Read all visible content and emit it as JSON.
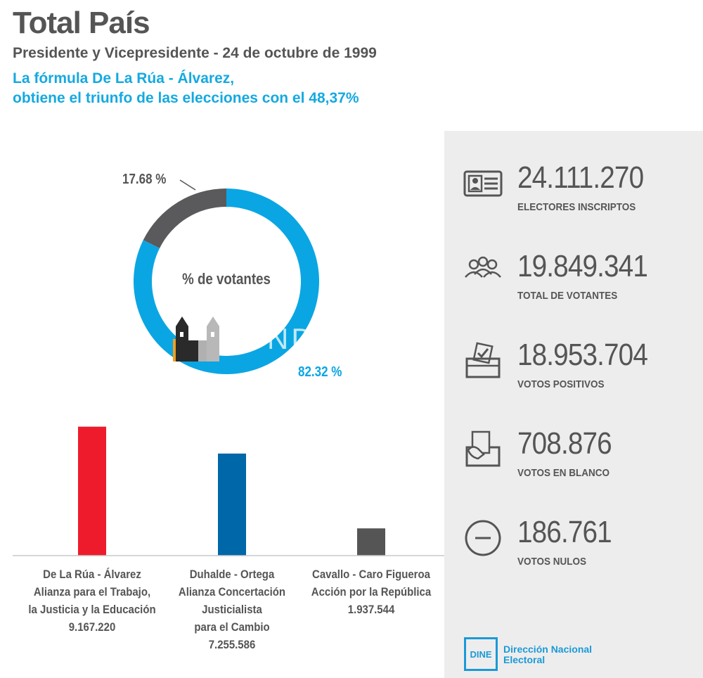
{
  "header": {
    "title": "Total País",
    "subtitle": "Presidente y Vicepresidente - 24 de octubre de 1999",
    "headline_line1": "La fórmula De La Rúa - Álvarez,",
    "headline_line2": "obtiene el triunfo de las elecciones con el 48,37%"
  },
  "colors": {
    "accent": "#15a9e0",
    "donut_voters": "#0aa6e3",
    "donut_non_voters": "#5a5a5c",
    "bar_de_la_rua": "#ee1b2d",
    "bar_duhalde": "#0067a8",
    "bar_cavallo": "#555555",
    "panel_bg": "#eeeded"
  },
  "chart_data": [
    {
      "type": "pie",
      "center_label": "% de votantes",
      "slices": [
        {
          "label": "82.32 %",
          "value": 82.32,
          "color": "#0aa6e3"
        },
        {
          "label": "17.68 %",
          "value": 17.68,
          "color": "#5a5a5c"
        }
      ]
    },
    {
      "type": "bar",
      "categories": [
        [
          "De La Rúa - Álvarez",
          "Alianza para el Trabajo,",
          "la Justicia y la Educación"
        ],
        [
          "Duhalde - Ortega",
          "Alianza Concertación",
          "Justicialista",
          "para el Cambio"
        ],
        [
          "Cavallo - Caro Figueroa",
          "Acción por la República"
        ]
      ],
      "values": [
        9167220,
        7255586,
        1937544
      ],
      "value_labels": [
        "9.167.220",
        "7.255.586",
        "1.937.544"
      ],
      "colors": [
        "#ee1b2d",
        "#0067a8",
        "#555555"
      ],
      "ylim": [
        0,
        10000000
      ]
    }
  ],
  "stats": [
    {
      "icon": "id-card-icon",
      "value": "24.111.270",
      "label": "ELECTORES INSCRIPTOS"
    },
    {
      "icon": "people-group-icon",
      "value": "19.849.341",
      "label": "TOTAL DE VOTANTES"
    },
    {
      "icon": "ballot-box-icon",
      "value": "18.953.704",
      "label": "VOTOS POSITIVOS"
    },
    {
      "icon": "blank-vote-icon",
      "value": "708.876",
      "label": "VOTOS EN BLANCO"
    },
    {
      "icon": "null-vote-icon",
      "value": "186.761",
      "label": "VOTOS NULOS"
    }
  ],
  "watermark": {
    "text": "FUNDACION ALFIER"
  },
  "footer": {
    "logo_text": "DINE",
    "org_line1": "Dirección Nacional",
    "org_line2": "Electoral"
  }
}
